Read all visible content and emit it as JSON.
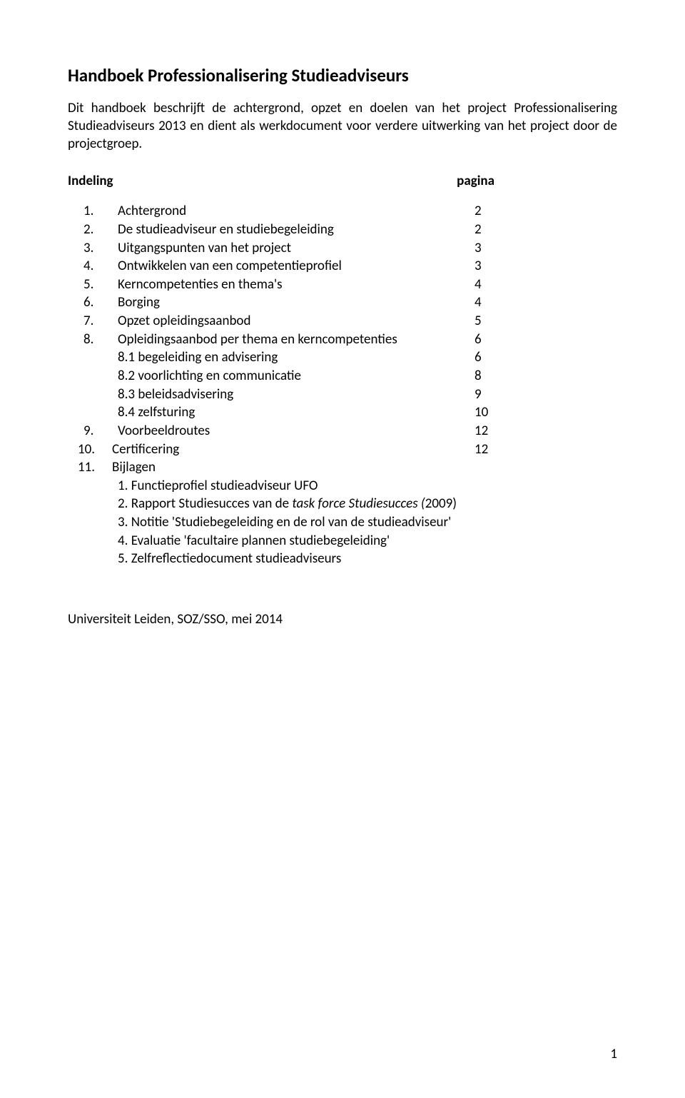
{
  "title": "Handboek Professionalisering Studieadviseurs",
  "intro": "Dit handboek beschrijft de achtergrond, opzet en doelen van het project Professionalisering Studieadviseurs 2013 en dient als werkdocument voor verdere uitwerking van het project door de projectgroep.",
  "indeling_label": "Indeling",
  "pagina_label": "pagina",
  "toc_items": [
    {
      "num": "1.",
      "label": "Achtergrond",
      "page": "2"
    },
    {
      "num": "2.",
      "label": "De studieadviseur en studiebegeleiding",
      "page": "2"
    },
    {
      "num": "3.",
      "label": "Uitgangspunten van het project",
      "page": "3"
    },
    {
      "num": "4.",
      "label": "Ontwikkelen van een competentieprofiel",
      "page": "3"
    },
    {
      "num": "5.",
      "label": "Kerncompetenties en thema's",
      "page": "4"
    },
    {
      "num": "6.",
      "label": "Borging",
      "page": "4"
    },
    {
      "num": "7.",
      "label": "Opzet opleidingsaanbod",
      "page": "5"
    },
    {
      "num": "8.",
      "label": "Opleidingsaanbod per thema en kerncompetenties",
      "page": "6"
    }
  ],
  "toc_sub8": [
    {
      "label": "8.1 begeleiding en advisering",
      "page": "6"
    },
    {
      "label": "8.2 voorlichting en communicatie",
      "page": "8"
    },
    {
      "label": "8.3 beleidsadvisering",
      "page": "9"
    },
    {
      "label": "8.4 zelfsturing",
      "page": "10"
    }
  ],
  "toc_items2": [
    {
      "num": "9.",
      "label": "Voorbeeldroutes",
      "page": "12"
    },
    {
      "num": "10.",
      "label": "Certificering",
      "page": "12",
      "wide": true
    },
    {
      "num": "11.",
      "label": "Bijlagen",
      "page": "",
      "wide": true
    }
  ],
  "bijlagen": [
    "1. Functieprofiel studieadviseur UFO",
    "3. Notitie 'Studiebegeleiding en de rol van de studieadviseur'",
    "4. Evaluatie 'facultaire plannen studiebegeleiding'",
    "5. Zelfreflectiedocument studieadviseurs"
  ],
  "bijlage2_pre": "2. Rapport Studiesucces van de ",
  "bijlage2_italic": "task force Studiesucces (",
  "bijlage2_post": "2009)",
  "footer": "Universiteit Leiden, SOZ/SSO, mei 2014",
  "pagenum": "1"
}
